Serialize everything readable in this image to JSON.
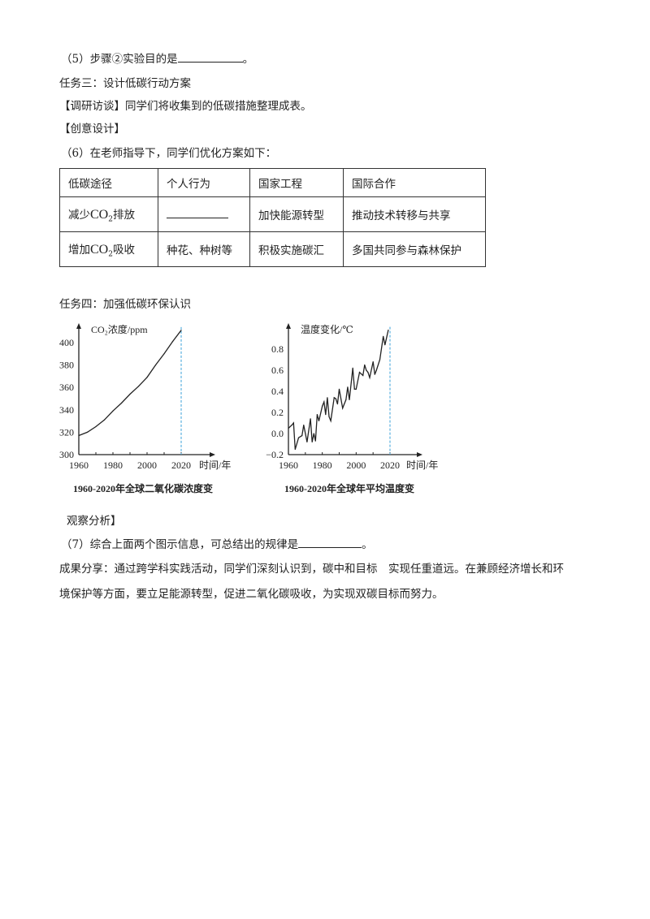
{
  "lines": {
    "q5": "（5）步骤②实验目的是",
    "q5_end": "。",
    "task3": "任务三：设计低碳行动方案",
    "research": "【调研访谈】同学们将收集到的低碳措施整理成表。",
    "creative": "【创意设计】",
    "q6": "（6）在老师指导下，同学们优化方案如下：",
    "task4": "任务四：加强低碳环保认识",
    "observe": "观察分析】",
    "q7": "（7）综合上面两个图示信息，可总结出的规律是",
    "q7_end": "。",
    "result1": "成果分享：通过跨学科实践活动，同学们深刻认识到，碳中和目标　实现任重道远。在兼顾经济增长和环",
    "result2": "境保护等方面，要立足能源转型，促进二氧化碳吸收，为实现双碳目标而努力。"
  },
  "table": {
    "headers": [
      "低碳途径",
      "个人行为",
      "国家工程",
      "国际合作"
    ],
    "rows": [
      {
        "path_pre": "减少",
        "path_chem": "CO",
        "path_sub": "2",
        "path_post": "排放",
        "personal": "",
        "national": "加快能源转型",
        "international": "推动技术转移与共享"
      },
      {
        "path_pre": "增加",
        "path_chem": "CO",
        "path_sub": "2",
        "path_post": "吸收",
        "personal": "种花、种树等",
        "national": "积极实施碳汇",
        "international": "多国共同参与森林保护"
      }
    ]
  },
  "chart_data": [
    {
      "type": "line",
      "ylabel": "CO₂浓度/ppm",
      "xlabel": "时间/年",
      "caption": "1960-2020年全球二氧化碳浓度变",
      "xlim": [
        1960,
        2020
      ],
      "ylim": [
        300,
        410
      ],
      "xticks": [
        1960,
        1980,
        2000,
        2020
      ],
      "yticks": [
        300,
        320,
        340,
        360,
        380,
        400
      ],
      "x": [
        1960,
        1965,
        1970,
        1975,
        1980,
        1985,
        1990,
        1995,
        2000,
        2005,
        2010,
        2015,
        2020
      ],
      "values": [
        317,
        320,
        325,
        331,
        339,
        346,
        354,
        361,
        369,
        380,
        390,
        401,
        411
      ],
      "marker_line_x": 2020,
      "line_color": "#222222",
      "marker_color": "#3aa0d8"
    },
    {
      "type": "line",
      "ylabel": "温度变化/℃",
      "xlabel": "时间/年",
      "caption": "1960-2020年全球年平均温度变",
      "xlim": [
        1960,
        2020
      ],
      "ylim": [
        -0.2,
        1.0
      ],
      "xticks": [
        1960,
        1980,
        2000,
        2020
      ],
      "yticks": [
        -0.2,
        0.0,
        0.2,
        0.4,
        0.6,
        0.8
      ],
      "ytick_labels": [
        "−0.2",
        "0.0",
        "0.2",
        "0.4",
        "0.6",
        "0.8"
      ],
      "x": [
        1960,
        1962,
        1963,
        1964,
        1966,
        1968,
        1969,
        1971,
        1973,
        1974,
        1975,
        1976,
        1977,
        1978,
        1980,
        1981,
        1982,
        1983,
        1984,
        1985,
        1987,
        1988,
        1989,
        1990,
        1992,
        1994,
        1995,
        1996,
        1998,
        1999,
        2000,
        2002,
        2004,
        2005,
        2006,
        2007,
        2008,
        2010,
        2011,
        2012,
        2014,
        2016,
        2017,
        2019
      ],
      "values": [
        0.05,
        0.08,
        0.1,
        -0.15,
        -0.04,
        -0.02,
        0.08,
        -0.08,
        0.14,
        -0.08,
        0.0,
        -0.07,
        0.18,
        0.12,
        0.26,
        0.3,
        0.18,
        0.34,
        0.16,
        0.12,
        0.34,
        0.33,
        0.28,
        0.42,
        0.24,
        0.32,
        0.44,
        0.32,
        0.62,
        0.42,
        0.42,
        0.58,
        0.55,
        0.65,
        0.6,
        0.58,
        0.53,
        0.68,
        0.56,
        0.6,
        0.7,
        0.92,
        0.84,
        0.98
      ],
      "marker_line_x": 2020,
      "line_color": "#222222",
      "marker_color": "#3aa0d8"
    }
  ]
}
